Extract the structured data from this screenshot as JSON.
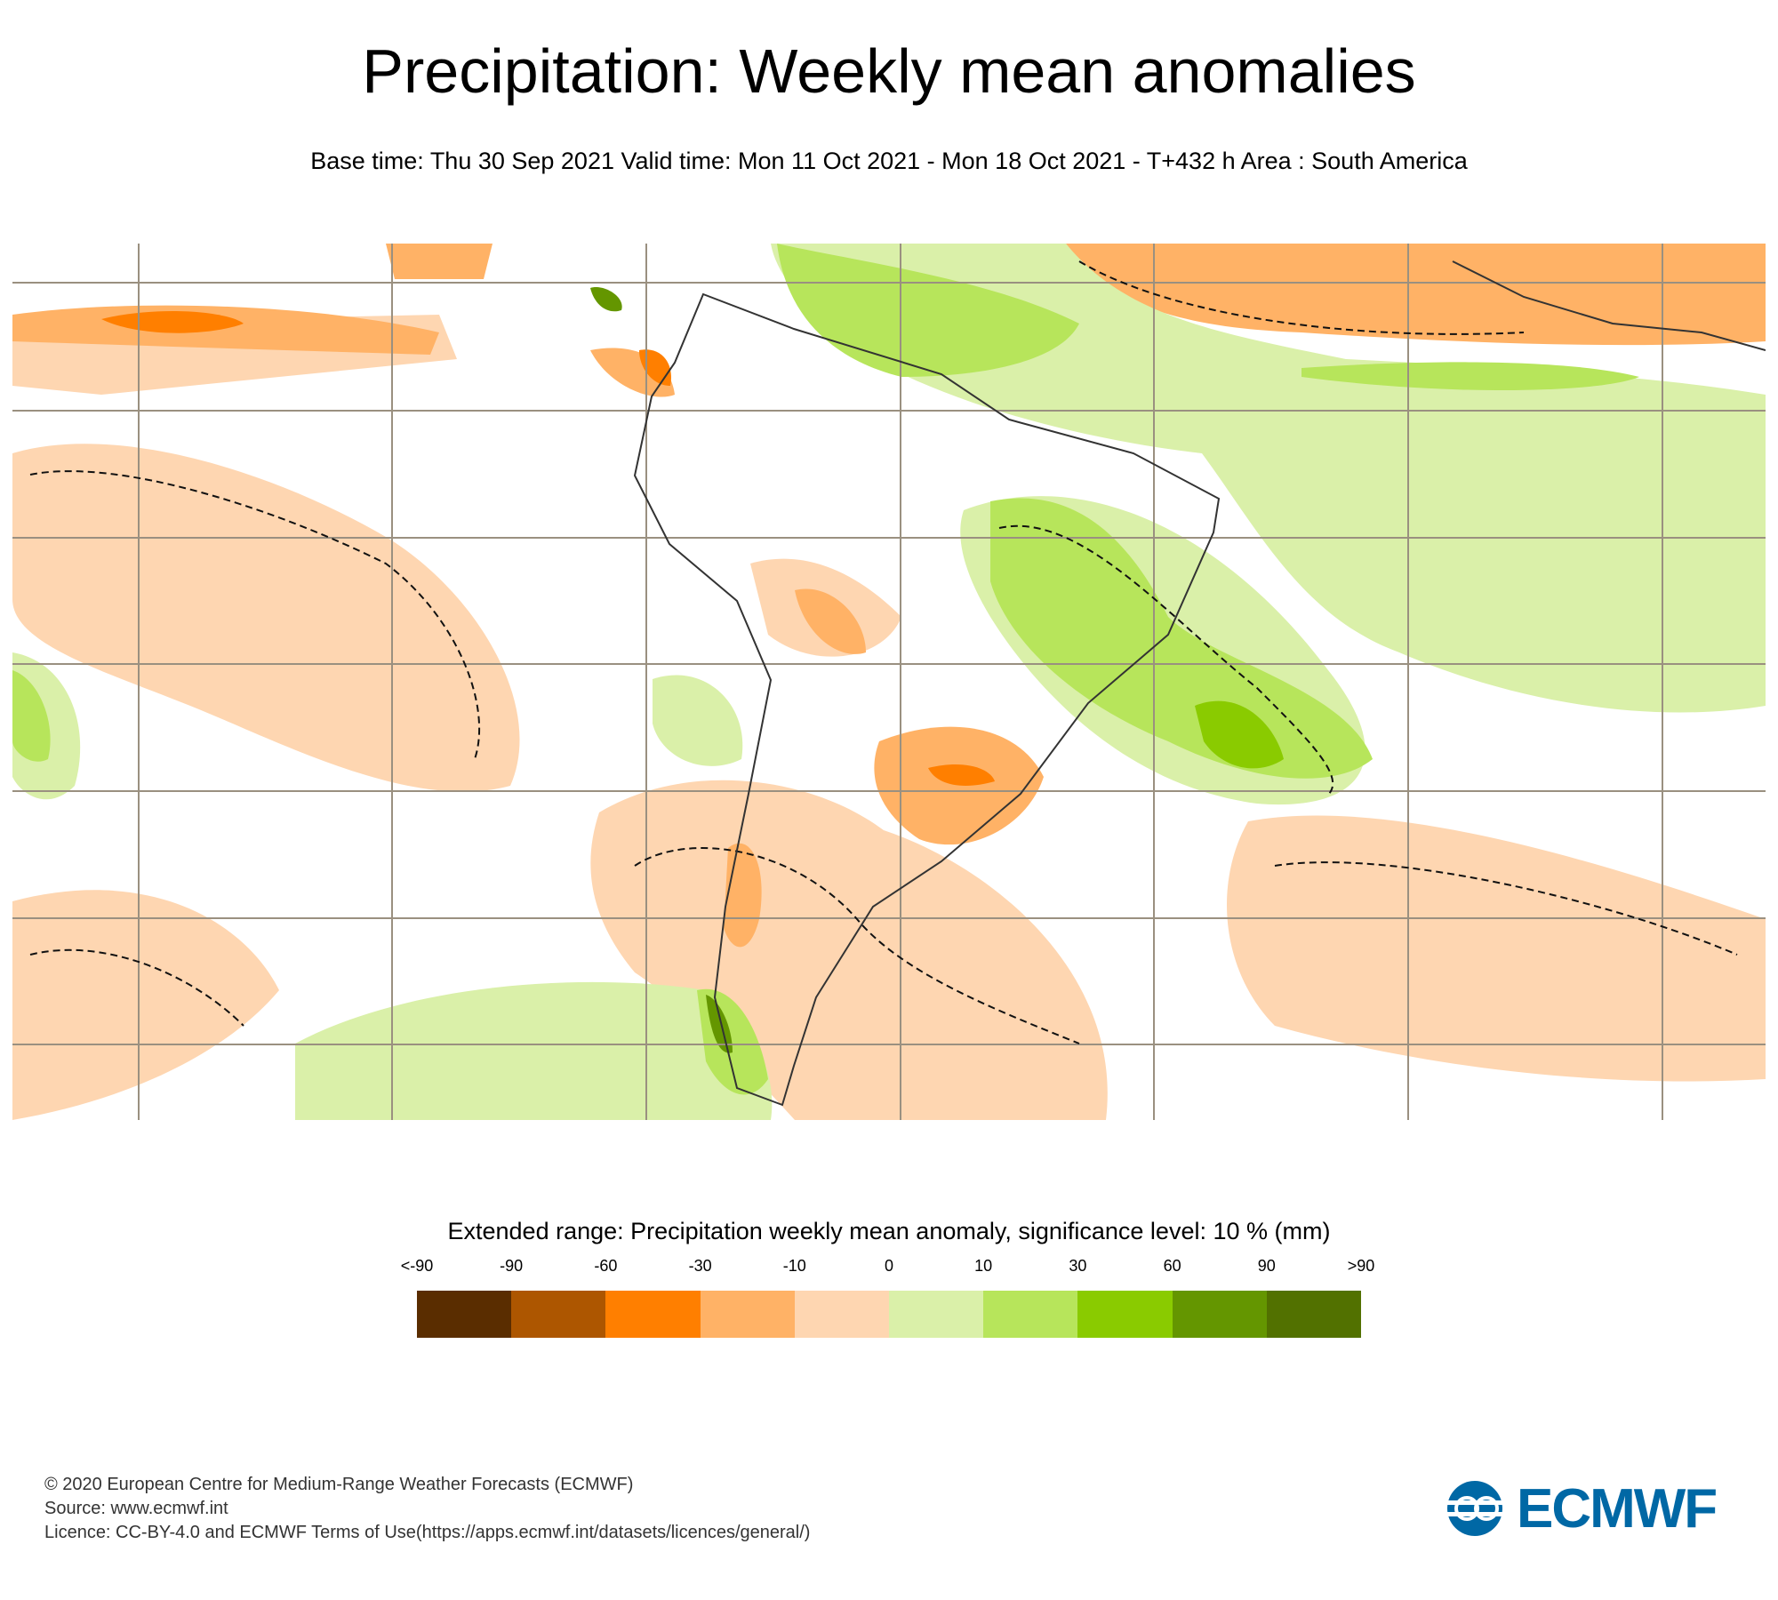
{
  "header": {
    "title": "Precipitation: Weekly mean anomalies",
    "subtitle": "Base time: Thu 30 Sep 2021 Valid time: Mon 11 Oct 2021 - Mon 18 Oct 2021 - T+432 h Area : South America"
  },
  "legend": {
    "title": "Extended range: Precipitation weekly mean anomaly, significance level: 10 % (mm)",
    "labels": [
      "<-90",
      "-90",
      "-60",
      "-30",
      "-10",
      "0",
      "10",
      "30",
      "60",
      "90",
      ">90"
    ],
    "colors": [
      "#5a2d00",
      "#ad5600",
      "#ff7f00",
      "#ffb266",
      "#fed6b1",
      "#daf0a9",
      "#b7e55b",
      "#8acb00",
      "#649600",
      "#527100"
    ]
  },
  "footer": {
    "line1": "© 2020 European Centre for Medium-Range Weather Forecasts (ECMWF)",
    "line2": "Source: www.ecmwf.int",
    "line3": "Licence: CC-BY-4.0 and ECMWF Terms of Use(https://apps.ecmwf.int/datasets/licences/general/)"
  },
  "logo": {
    "text": "ECMWF"
  }
}
